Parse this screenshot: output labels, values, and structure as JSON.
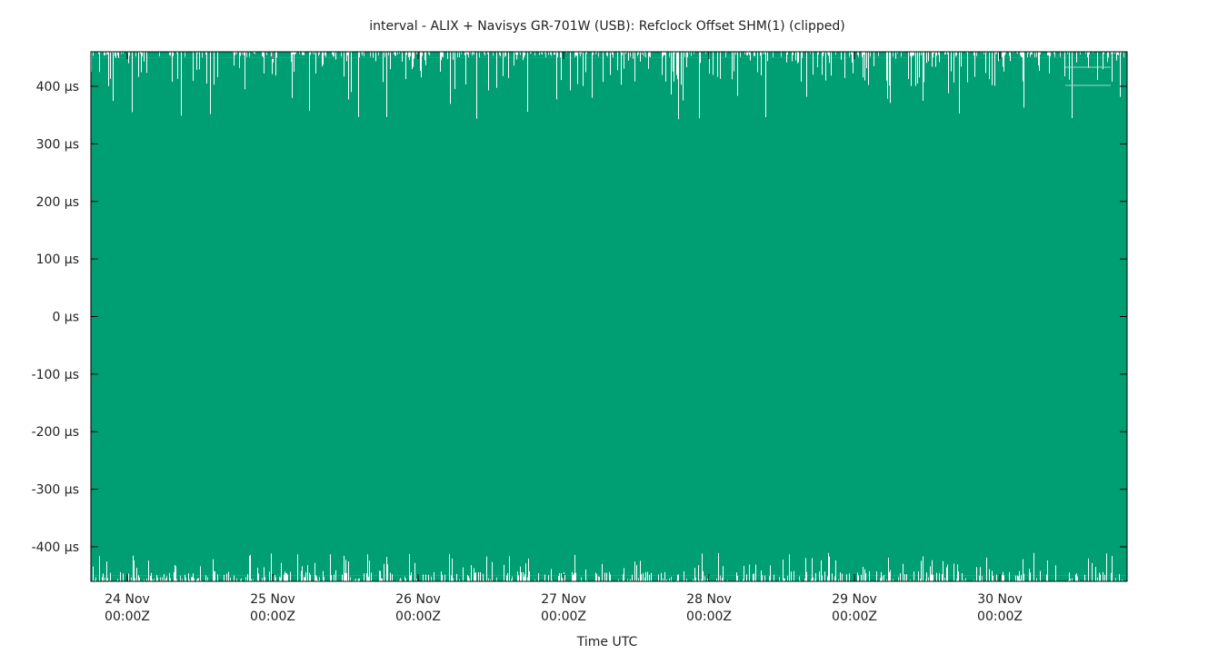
{
  "chart_data": {
    "type": "area",
    "title": "interval - ALIX + Navisys GR-701W (USB): Refclock Offset SHM(1) (clipped)",
    "xlabel": "Time UTC",
    "ylabel": "",
    "y_unit": "µs",
    "ylim": [
      -460,
      460
    ],
    "xlim": [
      "2019-11-23T18:00Z",
      "2019-11-30T21:00Z"
    ],
    "x_ticks": [
      {
        "value": "2019-11-24T00:00Z",
        "line1": "24 Nov",
        "line2": "00:00Z"
      },
      {
        "value": "2019-11-25T00:00Z",
        "line1": "25 Nov",
        "line2": "00:00Z"
      },
      {
        "value": "2019-11-26T00:00Z",
        "line1": "26 Nov",
        "line2": "00:00Z"
      },
      {
        "value": "2019-11-27T00:00Z",
        "line1": "27 Nov",
        "line2": "00:00Z"
      },
      {
        "value": "2019-11-28T00:00Z",
        "line1": "28 Nov",
        "line2": "00:00Z"
      },
      {
        "value": "2019-11-29T00:00Z",
        "line1": "29 Nov",
        "line2": "00:00Z"
      },
      {
        "value": "2019-11-30T00:00Z",
        "line1": "30 Nov",
        "line2": "00:00Z"
      }
    ],
    "y_ticks": [
      {
        "value": 400,
        "label": "400 µs"
      },
      {
        "value": 300,
        "label": "300 µs"
      },
      {
        "value": 200,
        "label": "200 µs"
      },
      {
        "value": 100,
        "label": "100 µs"
      },
      {
        "value": 0,
        "label": "0 µs"
      },
      {
        "value": -100,
        "label": "-100 µs"
      },
      {
        "value": -200,
        "label": "-200 µs"
      },
      {
        "value": -300,
        "label": "-300 µs"
      },
      {
        "value": -400,
        "label": "-400 µs"
      }
    ],
    "series": [
      {
        "name": "",
        "color": "#009e73",
        "style": "filled band (dense oscillation clipped at the plot limits)",
        "upper_typical": 450,
        "upper_min": 340,
        "lower_typical": -450,
        "lower_max": -410
      }
    ],
    "legend": {
      "placement": "top-right",
      "entries": [
        "",
        ""
      ]
    },
    "grid": false
  }
}
